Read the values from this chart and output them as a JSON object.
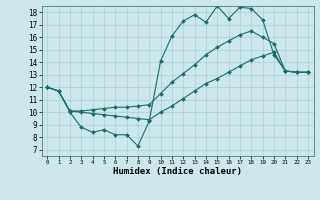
{
  "title": "",
  "xlabel": "Humidex (Indice chaleur)",
  "bg_color": "#cce8ec",
  "grid_color": "#aacdd4",
  "line_color": "#1a6b6b",
  "xlim": [
    -0.5,
    23.5
  ],
  "ylim": [
    6.5,
    18.5
  ],
  "xticks": [
    0,
    1,
    2,
    3,
    4,
    5,
    6,
    7,
    8,
    9,
    10,
    11,
    12,
    13,
    14,
    15,
    16,
    17,
    18,
    19,
    20,
    21,
    22,
    23
  ],
  "yticks": [
    7,
    8,
    9,
    10,
    11,
    12,
    13,
    14,
    15,
    16,
    17,
    18
  ],
  "line1_x": [
    0,
    1,
    2,
    3,
    4,
    5,
    6,
    7,
    8,
    9,
    10,
    11,
    12,
    13,
    14,
    15,
    16,
    17,
    18,
    19,
    20,
    21,
    22,
    23
  ],
  "line1_y": [
    12,
    11.7,
    10.0,
    8.8,
    8.4,
    8.6,
    8.2,
    8.2,
    7.3,
    9.3,
    14.1,
    16.1,
    17.3,
    17.8,
    17.2,
    18.5,
    17.5,
    18.4,
    18.3,
    17.4,
    14.6,
    13.3,
    13.2,
    13.2
  ],
  "line2_x": [
    0,
    1,
    2,
    3,
    4,
    5,
    6,
    7,
    8,
    9,
    10,
    11,
    12,
    13,
    14,
    15,
    16,
    17,
    18,
    19,
    20,
    21,
    22,
    23
  ],
  "line2_y": [
    12,
    11.7,
    10.1,
    10.1,
    10.2,
    10.3,
    10.4,
    10.4,
    10.5,
    10.6,
    11.5,
    12.4,
    13.1,
    13.8,
    14.6,
    15.2,
    15.7,
    16.2,
    16.5,
    16.0,
    15.5,
    13.3,
    13.2,
    13.2
  ],
  "line3_x": [
    0,
    1,
    2,
    3,
    4,
    5,
    6,
    7,
    8,
    9,
    10,
    11,
    12,
    13,
    14,
    15,
    16,
    17,
    18,
    19,
    20,
    21,
    22,
    23
  ],
  "line3_y": [
    12,
    11.7,
    10.1,
    10.0,
    9.9,
    9.8,
    9.7,
    9.6,
    9.5,
    9.4,
    10.0,
    10.5,
    11.1,
    11.7,
    12.3,
    12.7,
    13.2,
    13.7,
    14.2,
    14.5,
    14.8,
    13.3,
    13.2,
    13.2
  ]
}
